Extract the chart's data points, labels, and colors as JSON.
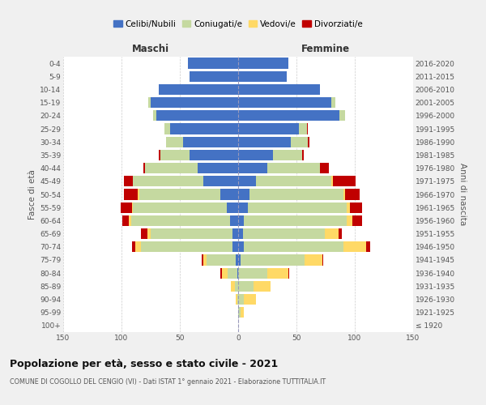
{
  "age_groups": [
    "100+",
    "95-99",
    "90-94",
    "85-89",
    "80-84",
    "75-79",
    "70-74",
    "65-69",
    "60-64",
    "55-59",
    "50-54",
    "45-49",
    "40-44",
    "35-39",
    "30-34",
    "25-29",
    "20-24",
    "15-19",
    "10-14",
    "5-9",
    "0-4"
  ],
  "birth_years": [
    "≤ 1920",
    "1921-1925",
    "1926-1930",
    "1931-1935",
    "1936-1940",
    "1941-1945",
    "1946-1950",
    "1951-1955",
    "1956-1960",
    "1961-1965",
    "1966-1970",
    "1971-1975",
    "1976-1980",
    "1981-1985",
    "1986-1990",
    "1991-1995",
    "1996-2000",
    "2001-2005",
    "2006-2010",
    "2011-2015",
    "2016-2020"
  ],
  "colors": {
    "celibe": "#4472C4",
    "coniugato": "#c5d9a0",
    "vedovo": "#ffd966",
    "divorziato": "#c00000"
  },
  "male": {
    "celibe": [
      0,
      0,
      0,
      0,
      1,
      2,
      5,
      5,
      7,
      10,
      15,
      30,
      35,
      42,
      47,
      58,
      70,
      75,
      68,
      42,
      43
    ],
    "coniugato": [
      0,
      0,
      1,
      3,
      8,
      25,
      78,
      70,
      85,
      80,
      70,
      60,
      45,
      25,
      15,
      5,
      3,
      2,
      0,
      0,
      0
    ],
    "vedovo": [
      0,
      0,
      1,
      3,
      5,
      3,
      5,
      3,
      2,
      1,
      1,
      0,
      0,
      0,
      0,
      0,
      0,
      0,
      0,
      0,
      0
    ],
    "divorziato": [
      0,
      0,
      0,
      0,
      1,
      1,
      3,
      5,
      5,
      10,
      12,
      8,
      1,
      1,
      0,
      0,
      0,
      0,
      0,
      0,
      0
    ]
  },
  "female": {
    "nubile": [
      0,
      0,
      0,
      0,
      0,
      2,
      5,
      4,
      5,
      8,
      10,
      15,
      25,
      30,
      45,
      52,
      87,
      80,
      70,
      42,
      43
    ],
    "coniugata": [
      0,
      2,
      5,
      13,
      25,
      55,
      85,
      70,
      88,
      85,
      80,
      65,
      45,
      25,
      15,
      7,
      5,
      3,
      0,
      0,
      0
    ],
    "vedova": [
      0,
      3,
      10,
      15,
      18,
      15,
      20,
      12,
      5,
      3,
      2,
      1,
      0,
      0,
      0,
      0,
      0,
      0,
      0,
      0,
      0
    ],
    "divorziata": [
      0,
      0,
      0,
      0,
      1,
      1,
      3,
      3,
      8,
      10,
      12,
      20,
      8,
      1,
      1,
      1,
      0,
      0,
      0,
      0,
      0
    ]
  },
  "xlim": 150,
  "title": "Popolazione per età, sesso e stato civile - 2021",
  "subtitle": "COMUNE DI COGOLLO DEL CENGIO (VI) - Dati ISTAT 1° gennaio 2021 - Elaborazione TUTTITALIA.IT",
  "xlabel_left": "Maschi",
  "xlabel_right": "Femmine",
  "ylabel_left": "Fasce di età",
  "ylabel_right": "Anni di nascita",
  "legend_labels": [
    "Celibi/Nubili",
    "Coniugati/e",
    "Vedovi/e",
    "Divorziati/e"
  ],
  "background_color": "#f0f0f0",
  "plot_bg_color": "#ffffff"
}
